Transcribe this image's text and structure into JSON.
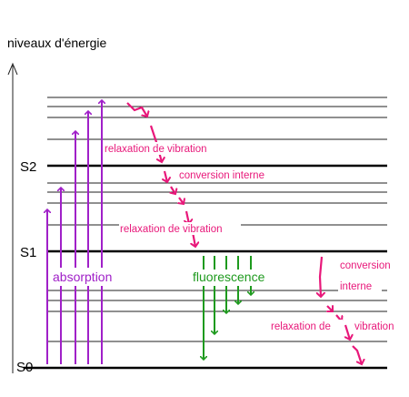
{
  "title": "niveaux d'énergie",
  "levels": {
    "s0": "S0",
    "s1": "S1",
    "s2": "S2"
  },
  "labels": {
    "absorption": "absorption",
    "fluorescence": "fluorescence",
    "relaxation_vibration_1": "relaxation de vibration",
    "conversion_interne_1": "conversion interne",
    "relaxation_vibration_2": "relaxation de vibration",
    "conversion_2_line1": "conversion",
    "conversion_2_line2": "interne",
    "relaxation_vibration_3_part1": "relaxation de",
    "relaxation_vibration_3_part2": "vibration"
  },
  "colors": {
    "absorption": "#a020c8",
    "fluorescence": "#1e9a1e",
    "nonradiative": "#e8187a",
    "levels": "#000000",
    "sublevels": "#222222"
  }
}
